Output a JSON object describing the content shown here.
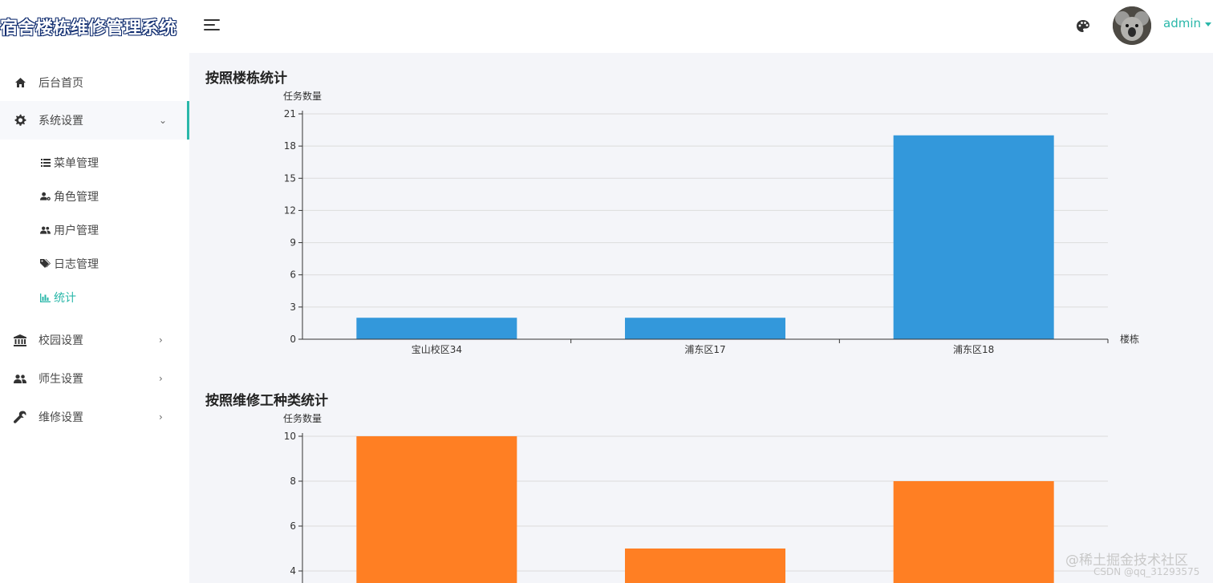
{
  "brand": {
    "title": "宿舍楼栋维修管理系统"
  },
  "header": {
    "user_name": "admin",
    "icons": {
      "menu_toggle": "hamburger-icon",
      "theme": "palette-icon",
      "avatar": "koala-avatar"
    }
  },
  "sidebar": {
    "items": [
      {
        "label": "后台首页",
        "icon": "home-icon"
      },
      {
        "label": "系统设置",
        "icon": "gear-icon",
        "expanded": true,
        "children": [
          {
            "label": "菜单管理",
            "icon": "list-icon"
          },
          {
            "label": "角色管理",
            "icon": "user-gear-icon"
          },
          {
            "label": "用户管理",
            "icon": "users-icon"
          },
          {
            "label": "日志管理",
            "icon": "tags-icon"
          },
          {
            "label": "统计",
            "icon": "bar-chart-icon",
            "active": true
          }
        ]
      },
      {
        "label": "校园设置",
        "icon": "university-icon"
      },
      {
        "label": "师生设置",
        "icon": "users-icon"
      },
      {
        "label": "维修设置",
        "icon": "wrench-icon"
      }
    ]
  },
  "main": {
    "section1_title": "按照楼栋统计",
    "section2_title": "按照维修工种类统计"
  },
  "chart_data": [
    {
      "type": "bar",
      "title": "按照楼栋统计",
      "ylabel": "任务数量",
      "xlabel": "楼栋",
      "categories": [
        "宝山校区34",
        "浦东区17",
        "浦东区18"
      ],
      "values": [
        2,
        2,
        19
      ],
      "ylim": [
        0,
        21
      ],
      "yticks": [
        0,
        3,
        6,
        9,
        12,
        15,
        18,
        21
      ],
      "color": "#3398db",
      "grid": true
    },
    {
      "type": "bar",
      "title": "按照维修工种类统计",
      "ylabel": "任务数量",
      "xlabel": "",
      "categories": [
        "",
        "",
        ""
      ],
      "values": [
        10,
        5,
        8
      ],
      "ylim": [
        0,
        10
      ],
      "yticks": [
        4,
        6,
        8,
        10
      ],
      "color": "#ff7f23",
      "grid": true
    }
  ],
  "watermark": {
    "line1": "@稀土掘金技术社区",
    "line2": "CSDN @qq_31293575"
  }
}
